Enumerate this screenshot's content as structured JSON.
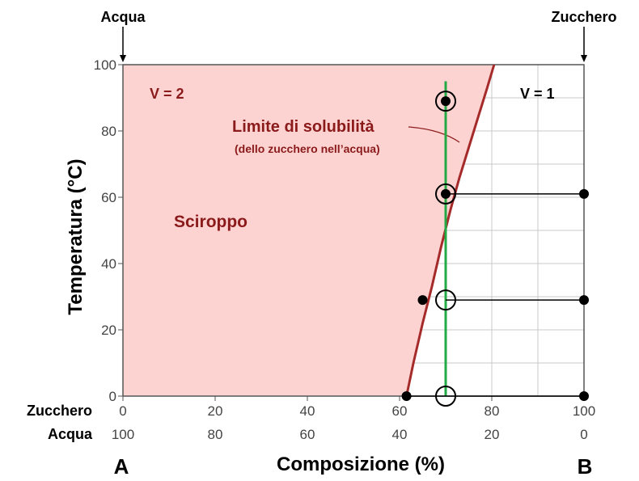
{
  "chart_data": {
    "type": "line",
    "title": "",
    "corner_labels": {
      "left": "Acqua",
      "right": "Zucchero"
    },
    "xlabel": "Composizione (%)",
    "ylabel": "Temperatura (°C)",
    "xlim": [
      0,
      100
    ],
    "ylim": [
      0,
      100
    ],
    "grid": true,
    "x_ticks_zucchero": [
      "0",
      "20",
      "40",
      "60",
      "80",
      "100"
    ],
    "x_ticks_acqua": [
      "100",
      "80",
      "60",
      "40",
      "20",
      "0"
    ],
    "y_ticks": [
      "0",
      "20",
      "40",
      "60",
      "80",
      "100"
    ],
    "axis_row_labels": {
      "zucchero": "Zucchero",
      "acqua": "Acqua"
    },
    "end_labels": {
      "left": "A",
      "right": "B"
    },
    "region_labels": {
      "v2": "V = 2",
      "v1": "V = 1",
      "sciroppo": "Sciroppo",
      "limite": "Limite di solubilità",
      "limite_sub": "(dello zucchero nell’acqua)"
    },
    "series": [
      {
        "name": "Limite di solubilità",
        "color": "#a52a2a",
        "x": [
          61.5,
          63,
          65,
          67,
          69,
          71,
          73,
          75,
          77,
          79,
          80.5
        ],
        "y": [
          0,
          10,
          22,
          33,
          45,
          56,
          66,
          75,
          84,
          93,
          100
        ]
      }
    ],
    "isopleth": {
      "x": 70,
      "y_range": [
        0,
        95
      ],
      "color": "#22aa44"
    },
    "circles": [
      {
        "x": 70,
        "y": 89
      },
      {
        "x": 70,
        "y": 61
      },
      {
        "x": 70,
        "y": 29
      },
      {
        "x": 70,
        "y": 0
      }
    ],
    "points": [
      {
        "x": 70,
        "y": 89
      },
      {
        "x": 70,
        "y": 61
      },
      {
        "x": 100,
        "y": 61
      },
      {
        "x": 65,
        "y": 29
      },
      {
        "x": 100,
        "y": 29
      },
      {
        "x": 61.5,
        "y": 0
      },
      {
        "x": 100,
        "y": 0
      }
    ],
    "tie_lines": [
      {
        "x1": 70,
        "x2": 100,
        "y": 61
      },
      {
        "x1": 70,
        "x2": 100,
        "y": 29
      },
      {
        "x1": 61.5,
        "x2": 100,
        "y": 0
      }
    ],
    "colors": {
      "region_fill": "#fdd3d2",
      "grid": "#c8c8c8",
      "axis": "#555555"
    }
  }
}
